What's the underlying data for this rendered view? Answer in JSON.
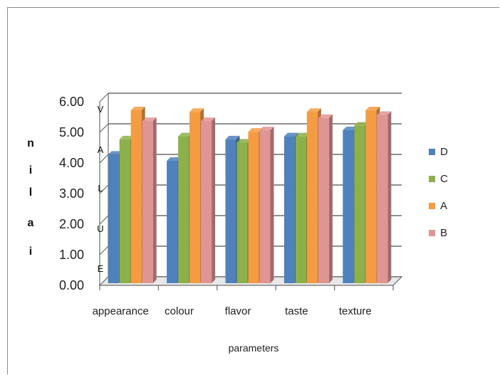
{
  "chart_data": {
    "type": "bar",
    "title": "",
    "xlabel": "parameters",
    "ylabel_vertical_letters": [
      "n",
      "i",
      "l",
      "a",
      "i"
    ],
    "ylabel_word_letters": [
      "V",
      "A",
      "L",
      "U",
      "E"
    ],
    "categories": [
      "appearance",
      "colour",
      "flavor",
      "taste",
      "texture"
    ],
    "ylim": [
      0,
      6
    ],
    "yticks": [
      "0.00",
      "1.00",
      "2.00",
      "3.00",
      "4.00",
      "5.00",
      "6.00"
    ],
    "grid": true,
    "legend_position": "right",
    "series": [
      {
        "name": "D",
        "color": "#4f81bd",
        "values": [
          4.2,
          4.0,
          4.7,
          4.8,
          5.0
        ]
      },
      {
        "name": "C",
        "color": "#8cb04a",
        "values": [
          4.7,
          4.8,
          4.6,
          4.8,
          5.15
        ]
      },
      {
        "name": "A",
        "color": "#f59b42",
        "values": [
          5.65,
          5.6,
          4.95,
          5.6,
          5.65
        ]
      },
      {
        "name": "B",
        "color": "#e09594",
        "values": [
          5.3,
          5.3,
          5.0,
          5.4,
          5.5
        ]
      }
    ]
  }
}
